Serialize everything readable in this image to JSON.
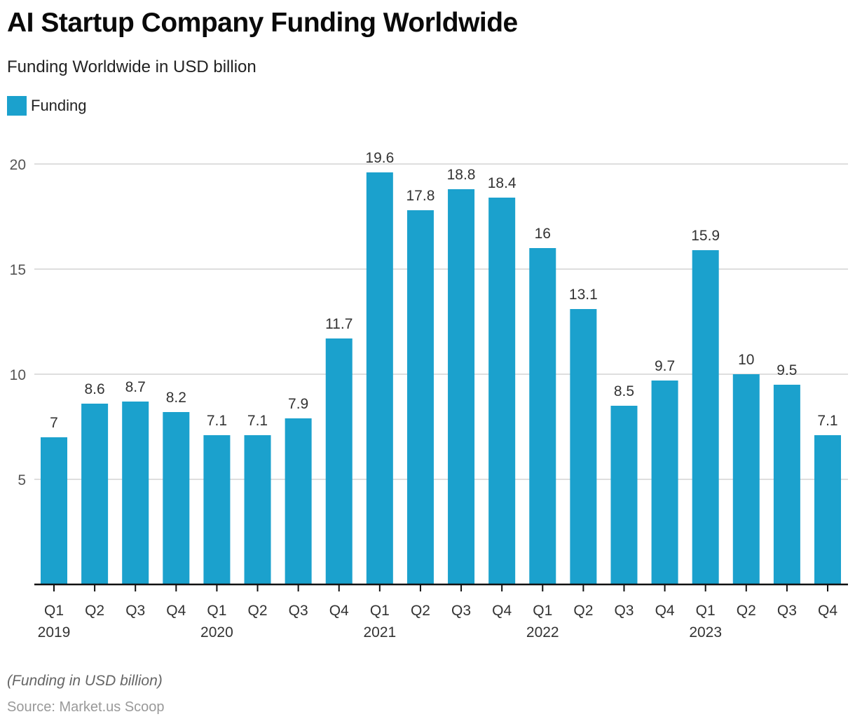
{
  "chart_data": {
    "type": "bar",
    "title": "AI Startup Company Funding Worldwide",
    "subtitle": "Funding Worldwide in USD billion",
    "xlabel": "",
    "ylabel": "",
    "ylim": [
      0,
      20
    ],
    "yticks": [
      5,
      10,
      15,
      20
    ],
    "grid": true,
    "legend_position": "top-left",
    "categories": [
      "Q1 2019",
      "Q2 2019",
      "Q3 2019",
      "Q4 2019",
      "Q1 2020",
      "Q2 2020",
      "Q3 2020",
      "Q4 2020",
      "Q1 2021",
      "Q2 2021",
      "Q3 2021",
      "Q4 2021",
      "Q1 2022",
      "Q2 2022",
      "Q3 2022",
      "Q4 2022",
      "Q1 2023",
      "Q2 2023",
      "Q3 2023",
      "Q4 2023"
    ],
    "tick_labels": [
      {
        "quarter": "Q1",
        "year": "2019"
      },
      {
        "quarter": "Q2",
        "year": ""
      },
      {
        "quarter": "Q3",
        "year": ""
      },
      {
        "quarter": "Q4",
        "year": ""
      },
      {
        "quarter": "Q1",
        "year": "2020"
      },
      {
        "quarter": "Q2",
        "year": ""
      },
      {
        "quarter": "Q3",
        "year": ""
      },
      {
        "quarter": "Q4",
        "year": ""
      },
      {
        "quarter": "Q1",
        "year": "2021"
      },
      {
        "quarter": "Q2",
        "year": ""
      },
      {
        "quarter": "Q3",
        "year": ""
      },
      {
        "quarter": "Q4",
        "year": ""
      },
      {
        "quarter": "Q1",
        "year": "2022"
      },
      {
        "quarter": "Q2",
        "year": ""
      },
      {
        "quarter": "Q3",
        "year": ""
      },
      {
        "quarter": "Q4",
        "year": ""
      },
      {
        "quarter": "Q1",
        "year": "2023"
      },
      {
        "quarter": "Q2",
        "year": ""
      },
      {
        "quarter": "Q3",
        "year": ""
      },
      {
        "quarter": "Q4",
        "year": ""
      }
    ],
    "series": [
      {
        "name": "Funding",
        "color": "#1ba1cd",
        "values": [
          7,
          8.6,
          8.7,
          8.2,
          7.1,
          7.1,
          7.9,
          11.7,
          19.6,
          17.8,
          18.8,
          18.4,
          16,
          13.1,
          8.5,
          9.7,
          15.9,
          10,
          9.5,
          7.1
        ]
      }
    ]
  },
  "footer": {
    "note": "(Funding in USD billion)",
    "source": "Source: Market.us Scoop"
  }
}
